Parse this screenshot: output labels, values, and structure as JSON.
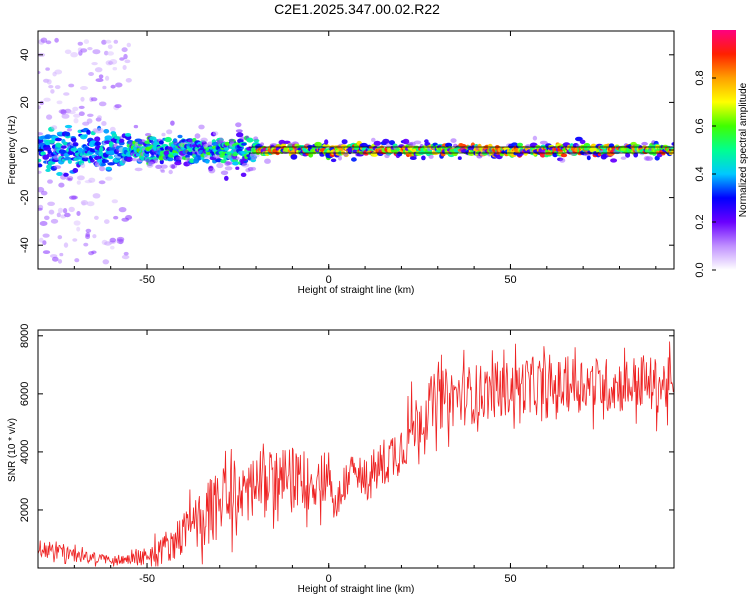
{
  "title": "C2E1.2025.347.00.02.R22",
  "chart_data": [
    {
      "type": "heatmap",
      "name": "spectrogram",
      "xlabel": "Height of straight line (km)",
      "ylabel": "Frequency (Hz)",
      "xlim": [
        -80,
        95
      ],
      "ylim": [
        -50,
        50
      ],
      "xticks": [
        -50,
        0,
        50
      ],
      "yticks": [
        -40,
        -20,
        0,
        20,
        40
      ],
      "colorbar": {
        "label": "Normalized spectral amplitude",
        "range": [
          0,
          1
        ],
        "ticks": [
          "0.0",
          "0.2",
          "0.4",
          "0.6",
          "0.8"
        ],
        "colormap": [
          "#ffffff",
          "#c090ff",
          "#6a00ff",
          "#0000ff",
          "#00c8ff",
          "#00ff90",
          "#40ff00",
          "#ffff00",
          "#ffa000",
          "#ff2000",
          "#ff0080"
        ]
      },
      "band_center_hz": 0,
      "segments": [
        {
          "x_range": [
            -80,
            -55
          ],
          "frequency_spread_hz": 47,
          "description": "broad noisy spread"
        },
        {
          "x_range": [
            -55,
            -20
          ],
          "frequency_spread_hz": 10,
          "description": "moderate spread"
        },
        {
          "x_range": [
            -20,
            95
          ],
          "frequency_spread_hz": 3,
          "description": "narrow strong band near 0 Hz"
        }
      ]
    },
    {
      "type": "line",
      "name": "snr",
      "xlabel": "Height of straight line (km)",
      "ylabel": "SNR (10 * v/v)",
      "xlim": [
        -80,
        95
      ],
      "ylim": [
        0,
        8200
      ],
      "xticks": [
        -50,
        0,
        50
      ],
      "yticks": [
        2000,
        4000,
        6000,
        8000
      ],
      "color": "#ee2222",
      "x": [
        -80,
        -75,
        -70,
        -65,
        -60,
        -55,
        -50,
        -45,
        -40,
        -35,
        -30,
        -25,
        -20,
        -15,
        -10,
        -5,
        0,
        2,
        5,
        10,
        15,
        20,
        25,
        30,
        35,
        40,
        45,
        50,
        55,
        60,
        65,
        70,
        75,
        80,
        85,
        90,
        95
      ],
      "values": [
        700,
        600,
        450,
        350,
        300,
        300,
        400,
        700,
        1200,
        1700,
        2200,
        2600,
        2800,
        3000,
        3100,
        2900,
        3300,
        2000,
        3200,
        3000,
        3600,
        4200,
        5200,
        5800,
        5900,
        6000,
        6100,
        6200,
        6300,
        6100,
        6300,
        6400,
        6300,
        6300,
        6400,
        6300,
        6300
      ],
      "noise_amplitude": [
        400,
        400,
        300,
        250,
        200,
        250,
        400,
        700,
        900,
        1300,
        1500,
        1500,
        1500,
        1400,
        1300,
        1200,
        1200,
        900,
        1000,
        1000,
        1100,
        1200,
        1300,
        1300,
        1300,
        1300,
        1200,
        1200,
        1200,
        1200,
        1200,
        1200,
        1200,
        1200,
        1200,
        1200,
        1200
      ]
    }
  ]
}
